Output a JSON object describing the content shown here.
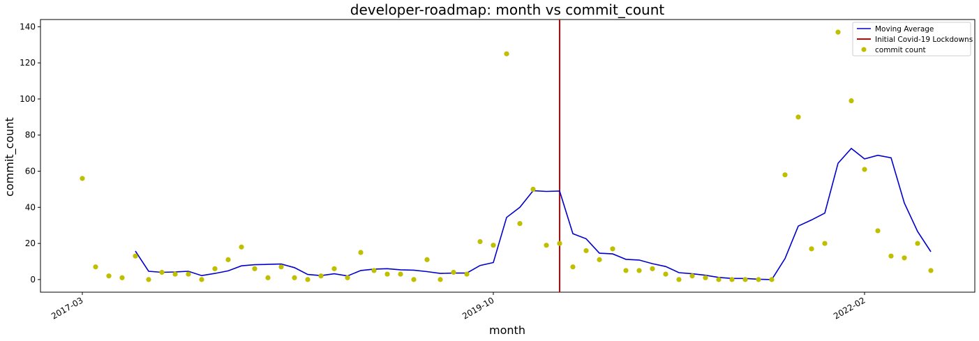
{
  "chart_data": {
    "type": "line",
    "title": "developer-roadmap: month vs commit_count",
    "xlabel": "month",
    "ylabel": "commit_count",
    "x_tick_labels": [
      "2017-03",
      "2019-10",
      "2022-02"
    ],
    "y_ticks": [
      0,
      20,
      40,
      60,
      80,
      100,
      120,
      140
    ],
    "ylim": [
      -7,
      144
    ],
    "grid": false,
    "legend_position": "top-right",
    "colors": {
      "moving_average": "#0000cc",
      "lockdown_line": "#cc0000",
      "commit_points": "#bfbf00"
    },
    "series": [
      {
        "name": "commit count",
        "kind": "scatter",
        "months": [
          "2017-03",
          "2017-04",
          "2017-05",
          "2017-06",
          "2017-07",
          "2017-08",
          "2017-09",
          "2017-10",
          "2017-11",
          "2017-12",
          "2018-01",
          "2018-02",
          "2018-03",
          "2018-04",
          "2018-05",
          "2018-06",
          "2018-07",
          "2018-08",
          "2018-09",
          "2018-10",
          "2018-11",
          "2018-12",
          "2019-01",
          "2019-02",
          "2019-03",
          "2019-04",
          "2019-05",
          "2019-06",
          "2019-07",
          "2019-08",
          "2019-09",
          "2019-10",
          "2019-11",
          "2019-12",
          "2020-01",
          "2020-02",
          "2020-03",
          "2020-04",
          "2020-05",
          "2020-06",
          "2020-07",
          "2020-08",
          "2020-09",
          "2020-10",
          "2020-11",
          "2020-12",
          "2021-01",
          "2021-02",
          "2021-03",
          "2021-04",
          "2021-05",
          "2021-06",
          "2021-07",
          "2021-08",
          "2021-09",
          "2021-10",
          "2021-11",
          "2021-12",
          "2022-01",
          "2022-02",
          "2022-03",
          "2022-04",
          "2022-05",
          "2022-06",
          "2022-07"
        ],
        "values": [
          56,
          7,
          2,
          1,
          13,
          0,
          4,
          3,
          3,
          0,
          6,
          11,
          18,
          6,
          1,
          7,
          1,
          0,
          2,
          6,
          1,
          15,
          5,
          3,
          3,
          0,
          11,
          0,
          4,
          3,
          21,
          19,
          125,
          31,
          50,
          19,
          20,
          7,
          16,
          11,
          17,
          5,
          5,
          6,
          3,
          0,
          2,
          1,
          0,
          0,
          0,
          0,
          0,
          58,
          90,
          17,
          20,
          137,
          99,
          61,
          27,
          13,
          12,
          20,
          5
        ]
      },
      {
        "name": "Moving Average",
        "kind": "line",
        "months": [
          "2017-07",
          "2017-08",
          "2017-09",
          "2017-10",
          "2017-11",
          "2017-12",
          "2018-01",
          "2018-02",
          "2018-03",
          "2018-04",
          "2018-05",
          "2018-06",
          "2018-07",
          "2018-08",
          "2018-09",
          "2018-10",
          "2018-11",
          "2018-12",
          "2019-01",
          "2019-02",
          "2019-03",
          "2019-04",
          "2019-05",
          "2019-06",
          "2019-07",
          "2019-08",
          "2019-09",
          "2019-10",
          "2019-11",
          "2019-12",
          "2020-01",
          "2020-02",
          "2020-03",
          "2020-04",
          "2020-05",
          "2020-06",
          "2020-07",
          "2020-08",
          "2020-09",
          "2020-10",
          "2020-11",
          "2020-12",
          "2021-01",
          "2021-02",
          "2021-03",
          "2021-04",
          "2021-05",
          "2021-06",
          "2021-07",
          "2021-08",
          "2021-09",
          "2021-10",
          "2021-11",
          "2021-12",
          "2022-01",
          "2022-02",
          "2022-03",
          "2022-04",
          "2022-05",
          "2022-06",
          "2022-07"
        ],
        "values": [
          15.8,
          4.6,
          4.0,
          4.2,
          4.6,
          2.2,
          3.4,
          4.8,
          7.6,
          8.2,
          8.4,
          8.6,
          6.6,
          2.8,
          2.2,
          3.2,
          2.0,
          5.0,
          5.8,
          6.0,
          5.4,
          5.2,
          4.4,
          3.4,
          3.6,
          3.6,
          7.8,
          9.4,
          34.4,
          40.0,
          49.2,
          48.8,
          49.0,
          25.4,
          22.6,
          14.6,
          14.2,
          11.2,
          10.8,
          8.8,
          7.2,
          3.8,
          3.2,
          2.4,
          1.2,
          0.6,
          0.6,
          0.2,
          0.0,
          11.6,
          29.6,
          33.0,
          36.8,
          64.4,
          72.6,
          66.8,
          68.8,
          67.4,
          42.4,
          26.6,
          15.4
        ]
      },
      {
        "name": "Initial Covid-19 Lockdowns",
        "kind": "vline",
        "month": "2020-03"
      }
    ]
  }
}
